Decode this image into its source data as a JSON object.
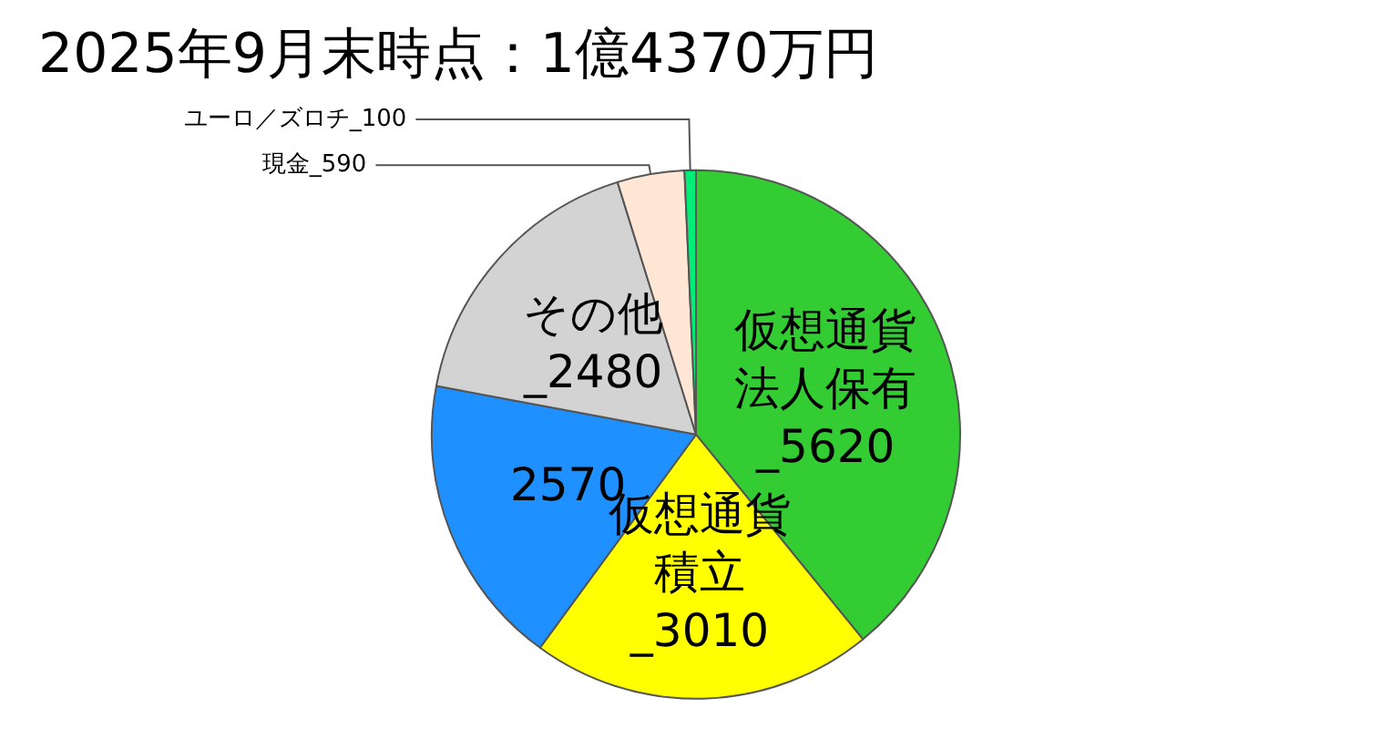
{
  "chart_data": {
    "type": "pie",
    "title": "2025年9月末時点：1億4370万円",
    "categories": [
      "仮想通貨法人保有",
      "仮想通貨積立",
      null,
      "その他",
      "現金",
      "ユーロ／ズロチ"
    ],
    "values": [
      5620,
      3010,
      2570,
      2480,
      590,
      100
    ],
    "value_labels": [
      "_5620",
      "_3010",
      "2570",
      "_2480",
      "_590",
      "_100"
    ],
    "colors": [
      "#33cc33",
      "#ffff00",
      "#1e90ff",
      "#d3d3d3",
      "#ffe6d5",
      "#00ee77"
    ],
    "legend": false
  }
}
